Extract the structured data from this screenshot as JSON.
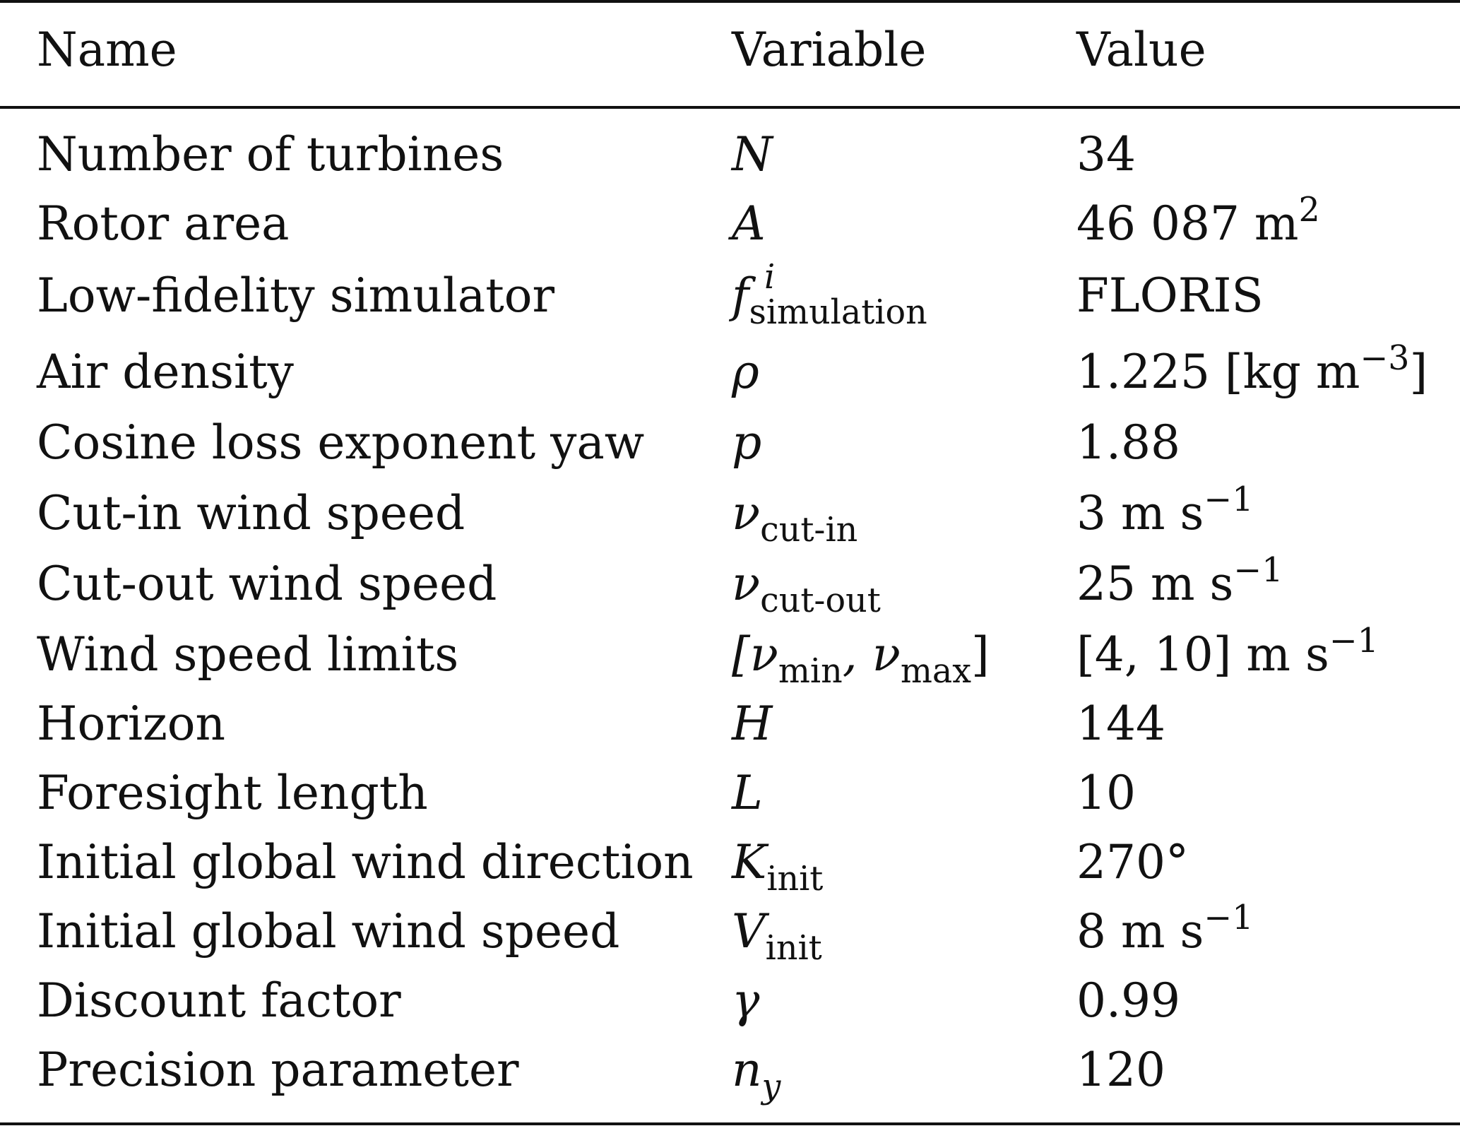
{
  "table": {
    "headers": {
      "name": "Name",
      "variable": "Variable",
      "value": "Value"
    },
    "rows": [
      {
        "name": "Number of turbines",
        "var": "N",
        "var_sub": "",
        "var_sup": "",
        "value": "34",
        "value_sup": "",
        "value_tail": ""
      },
      {
        "name": "Rotor area",
        "var": "A",
        "var_sub": "",
        "var_sup": "",
        "value": "46 087 m",
        "value_sup": "2",
        "value_tail": ""
      },
      {
        "name": "Low-fidelity simulator",
        "var": "f",
        "var_sub": "simulation",
        "var_sup": "i",
        "value": "FLORIS",
        "value_sup": "",
        "value_tail": ""
      },
      {
        "name": "Air density",
        "var": "ρ",
        "var_sub": "",
        "var_sup": "",
        "value": "1.225 [kg m",
        "value_sup": "−3",
        "value_tail": "]"
      },
      {
        "name": "Cosine loss exponent yaw",
        "var": "p",
        "var_sub": "",
        "var_sup": "",
        "value": "1.88",
        "value_sup": "",
        "value_tail": ""
      },
      {
        "name": "Cut-in wind speed",
        "var": "ν",
        "var_sub": "cut-in",
        "var_sup": "",
        "value": "3 m s",
        "value_sup": "−1",
        "value_tail": ""
      },
      {
        "name": "Cut-out wind speed",
        "var": "ν",
        "var_sub": "cut-out",
        "var_sup": "",
        "value": "25 m s",
        "value_sup": "−1",
        "value_tail": ""
      },
      {
        "name": "Wind speed limits",
        "var": "[ν",
        "var_sub": "min",
        "var_sup": "",
        "var2": ", ν",
        "var2_sub": "max",
        "var_close": "]",
        "value": "[4, 10] m s",
        "value_sup": "−1",
        "value_tail": ""
      },
      {
        "name": "Horizon",
        "var": "H",
        "var_sub": "",
        "var_sup": "",
        "value": "144",
        "value_sup": "",
        "value_tail": ""
      },
      {
        "name": "Foresight length",
        "var": "L",
        "var_sub": "",
        "var_sup": "",
        "value": "10",
        "value_sup": "",
        "value_tail": ""
      },
      {
        "name": "Initial global wind direction",
        "var": "K",
        "var_sub": "init",
        "var_sup": "",
        "value": "270°",
        "value_sup": "",
        "value_tail": ""
      },
      {
        "name": "Initial global wind speed",
        "var": "V",
        "var_sub": "init",
        "var_sup": "",
        "value": "8 m s",
        "value_sup": "−1",
        "value_tail": ""
      },
      {
        "name": "Discount factor",
        "var": "γ",
        "var_sub": "",
        "var_sup": "",
        "value": "0.99",
        "value_sup": "",
        "value_tail": ""
      },
      {
        "name": "Precision parameter",
        "var": "n",
        "var_sub": "y",
        "var_sup": "",
        "value": "120",
        "value_sup": "",
        "value_tail": ""
      }
    ]
  }
}
